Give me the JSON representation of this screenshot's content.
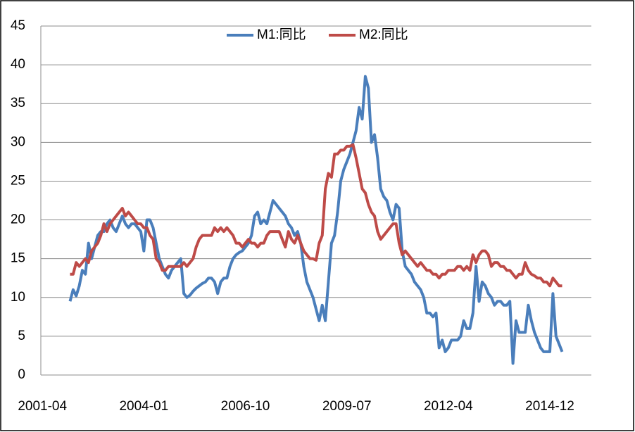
{
  "chart_data": {
    "type": "line",
    "categories": [
      "2001-04",
      null,
      null,
      null,
      null,
      null,
      null,
      null,
      null,
      null,
      null,
      null,
      null,
      null,
      null,
      null,
      null,
      null,
      null,
      null,
      null,
      null,
      null,
      null,
      null,
      null,
      null,
      null,
      null,
      null,
      null,
      null,
      null,
      "2004-01",
      null,
      null,
      null,
      null,
      null,
      null,
      null,
      null,
      null,
      null,
      null,
      null,
      null,
      null,
      null,
      null,
      null,
      null,
      null,
      null,
      null,
      null,
      null,
      null,
      null,
      null,
      null,
      null,
      null,
      null,
      null,
      null,
      "2006-10",
      null,
      null,
      null,
      null,
      null,
      null,
      null,
      null,
      null,
      null,
      null,
      null,
      null,
      null,
      null,
      null,
      null,
      null,
      null,
      null,
      null,
      null,
      null,
      null,
      null,
      null,
      null,
      null,
      null,
      null,
      null,
      null,
      "2009-07",
      null,
      null,
      null,
      null,
      null,
      null,
      null,
      null,
      null,
      null,
      null,
      null,
      null,
      null,
      null,
      null,
      null,
      null,
      null,
      null,
      null,
      null,
      null,
      null,
      null,
      null,
      null,
      null,
      null,
      null,
      null,
      null,
      "2012-04",
      null,
      null,
      null,
      null,
      null,
      null,
      null,
      null,
      null,
      null,
      null,
      null,
      null,
      null,
      null,
      null,
      null,
      null,
      null,
      null,
      null,
      null,
      null,
      null,
      null,
      null,
      null,
      null,
      null,
      null,
      null,
      null,
      "2014-12",
      null,
      null,
      null,
      null,
      null,
      null,
      null,
      null,
      null,
      null,
      null,
      null,
      null
    ],
    "series": [
      {
        "name": "M1:同比",
        "color": "#4a7ebb",
        "values": [
          null,
          null,
          null,
          null,
          null,
          null,
          null,
          null,
          null,
          9.5,
          11,
          10.2,
          11.5,
          13.5,
          13,
          17,
          15,
          16.5,
          18,
          18.5,
          18.5,
          19.5,
          20,
          19,
          18.5,
          19.5,
          20.5,
          19.5,
          19,
          19.5,
          19.5,
          19,
          18.5,
          16,
          20,
          20,
          19,
          17,
          15,
          14,
          13,
          12.5,
          13.5,
          14,
          14.5,
          15,
          10.5,
          10,
          10.3,
          10.8,
          11.2,
          11.5,
          11.8,
          12,
          12.5,
          12.5,
          12,
          10.5,
          12,
          12.5,
          12.5,
          14,
          15,
          15.5,
          15.8,
          16,
          16.5,
          17,
          18,
          20.5,
          21,
          19.5,
          20,
          19.5,
          21,
          22.5,
          22,
          21.5,
          21,
          20.5,
          19.5,
          19,
          18,
          18.5,
          17,
          14,
          12,
          11,
          10,
          8.5,
          7,
          9,
          7,
          12,
          17,
          18,
          21,
          25,
          26.5,
          27.5,
          28.5,
          30,
          31.5,
          34.5,
          33,
          38.5,
          37,
          30,
          31,
          28,
          24,
          23,
          22.5,
          21,
          20,
          22,
          21.5,
          16,
          14,
          13.5,
          13,
          12,
          11.5,
          11,
          10,
          8,
          8,
          7.5,
          8,
          3.5,
          4.5,
          3,
          3.5,
          4.5,
          4.5,
          4.5,
          5,
          7,
          6,
          6,
          8,
          14,
          9.5,
          12,
          11.5,
          10.5,
          10,
          9,
          9.5,
          9.5,
          9,
          9,
          9.5,
          1.5,
          7,
          5.5,
          5.5,
          5.5,
          9,
          7,
          5.5,
          4.5,
          3.5,
          3,
          3,
          3,
          10.5,
          5,
          4,
          3,
          null,
          null,
          null,
          null,
          null,
          null,
          null,
          null,
          null
        ]
      },
      {
        "name": "M2:同比",
        "color": "#be4b48",
        "values": [
          null,
          null,
          null,
          null,
          null,
          null,
          null,
          null,
          null,
          13,
          13,
          14.5,
          14,
          14.5,
          15,
          14.5,
          16,
          16.5,
          17,
          18,
          19.5,
          18.5,
          19.5,
          20,
          20.5,
          21,
          21.5,
          20.5,
          21,
          20.5,
          20,
          19.5,
          19.5,
          19,
          19,
          18,
          17.5,
          15,
          14.5,
          13.5,
          13.5,
          14,
          14,
          14,
          14,
          14,
          14.5,
          14,
          14.5,
          15,
          16.5,
          17.5,
          18,
          18,
          18,
          18,
          19,
          18.5,
          19,
          18.5,
          19,
          18.5,
          18,
          17,
          17,
          16.5,
          17,
          17.5,
          17,
          17,
          16.5,
          17,
          17,
          18,
          18.5,
          18.5,
          18.5,
          18.5,
          17.5,
          16.5,
          18.5,
          17.5,
          17,
          18,
          17,
          16,
          15.5,
          15,
          15,
          14.8,
          17,
          18,
          24,
          26,
          25.5,
          28.5,
          28.5,
          29,
          29,
          29.5,
          29.5,
          29.7,
          28,
          26,
          24,
          23.5,
          22,
          21,
          20.5,
          18.5,
          17.5,
          18,
          18.5,
          19,
          19.5,
          19.5,
          17,
          15.5,
          16,
          15.5,
          15,
          14.5,
          14,
          14.5,
          14,
          13.5,
          13.5,
          13,
          13,
          12.5,
          13,
          13,
          13.5,
          13.5,
          13.5,
          14,
          14,
          13.5,
          14,
          13.5,
          15.5,
          14.5,
          15.5,
          16,
          16,
          15.5,
          14,
          14.5,
          14.5,
          14,
          14,
          13.5,
          13.5,
          13,
          12.5,
          13,
          13,
          14.5,
          13.5,
          13,
          12.8,
          12.5,
          12.5,
          12,
          12,
          11.5,
          12.5,
          12,
          11.5,
          11.5,
          null,
          null,
          null,
          null,
          null,
          null,
          null,
          null,
          null
        ]
      }
    ],
    "ylim": [
      0,
      45
    ],
    "yticks": [
      0,
      5,
      10,
      15,
      20,
      25,
      30,
      35,
      40,
      45
    ],
    "grid": true,
    "legend": "top"
  }
}
